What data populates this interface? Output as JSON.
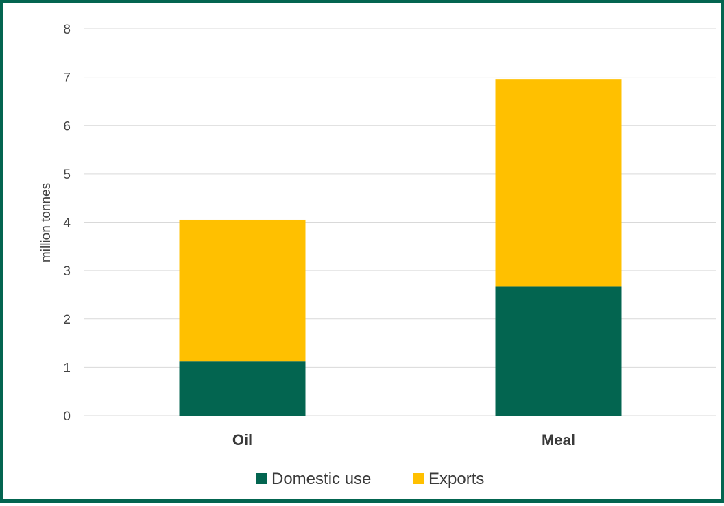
{
  "chart_data": {
    "type": "bar",
    "stacked": true,
    "categories": [
      "Oil",
      "Meal"
    ],
    "series": [
      {
        "name": "Domestic use",
        "values": [
          1.13,
          2.67
        ],
        "color": "#036550"
      },
      {
        "name": "Exports",
        "values": [
          2.92,
          4.28
        ],
        "color": "#FFC000"
      }
    ],
    "title": "",
    "xlabel": "",
    "ylabel": "million tonnes",
    "ylim": [
      0,
      8
    ],
    "yticks": [
      0,
      1,
      2,
      3,
      4,
      5,
      6,
      7,
      8
    ],
    "grid": true,
    "legend": "bottom",
    "border_color": "#036550"
  }
}
